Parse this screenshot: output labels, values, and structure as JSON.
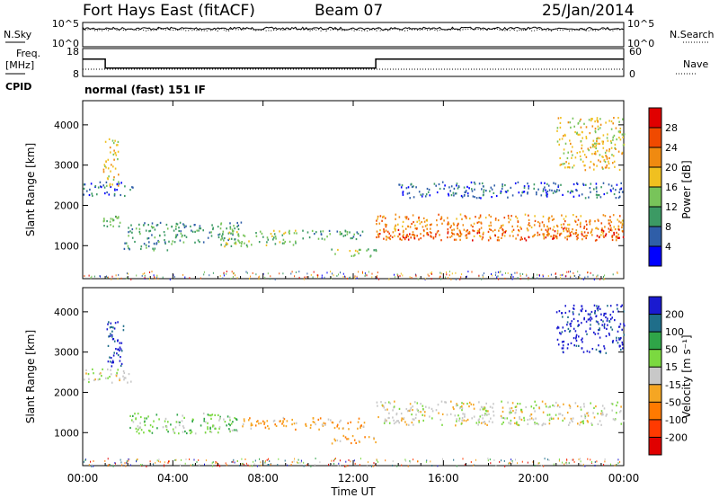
{
  "header": {
    "station": "Fort Hays East (fitACF)",
    "beam": "Beam 07",
    "date": "25/Jan/2014"
  },
  "side_labels": {
    "nsky": "N.Sky",
    "nsearch": "N.Search",
    "freq_line1": "Freq.",
    "freq_line2": "[MHz]",
    "nave": "Nave",
    "cpid": "CPID",
    "cpid_value": "normal (fast) 151 IF"
  },
  "colors": {
    "power": [
      "#0000ff",
      "#2f5ea8",
      "#3c9a64",
      "#78c45a",
      "#f0c020",
      "#f08a10",
      "#f04a00",
      "#e00000"
    ],
    "velocity": [
      "#1a1ad0",
      "#1f6e8a",
      "#2fa548",
      "#7bd940",
      "#c8c8c8",
      "#f5a623",
      "#ff7a00",
      "#ff3a00",
      "#e00000"
    ],
    "nsky_trace": "#000000",
    "freq_trace": "#000000"
  },
  "chart_data": [
    {
      "type": "line",
      "name_panel": "noise",
      "ylabels_left": [
        "10^5",
        "10^0"
      ],
      "ylabels_right": [
        "10^5",
        "10^0"
      ],
      "series": [
        {
          "name": "N.Sky",
          "style": "solid",
          "level": 0.75
        },
        {
          "name": "N.Search",
          "style": "dotted",
          "level": 0.7
        }
      ]
    },
    {
      "type": "line",
      "name_panel": "frequency",
      "yticks_left": [
        18,
        8
      ],
      "yticks_right": [
        60,
        0
      ],
      "series": [
        {
          "name": "Freq.",
          "style": "solid",
          "x": [
            0,
            1.0,
            1.0,
            13.0,
            13.0,
            24
          ],
          "y": [
            14.5,
            14.5,
            10.5,
            10.5,
            14.5,
            14.5
          ]
        },
        {
          "name": "Nave",
          "style": "dotted",
          "x": [
            0,
            24
          ],
          "y": [
            10,
            10
          ]
        }
      ]
    },
    {
      "type": "heatmap",
      "name_panel": "power",
      "ylabel": "Slant Range [km]",
      "yticks": [
        1000,
        2000,
        3000,
        4000
      ],
      "ylim": [
        180,
        4600
      ],
      "xlim": [
        0,
        24
      ],
      "colorbar": {
        "label": "Power [dB]",
        "ticks": [
          "4",
          "8",
          "12",
          "16",
          "20",
          "24",
          "28"
        ]
      },
      "regions": [
        {
          "x": [
            0.0,
            2.2
          ],
          "y": [
            2250,
            2600
          ],
          "level": 1
        },
        {
          "x": [
            0.9,
            1.6
          ],
          "y": [
            2500,
            3700
          ],
          "level": 4
        },
        {
          "x": [
            0.9,
            1.7
          ],
          "y": [
            1500,
            1750
          ],
          "level": 3
        },
        {
          "x": [
            1.8,
            4.0
          ],
          "y": [
            900,
            1100
          ],
          "level": 2
        },
        {
          "x": [
            2.0,
            7.0
          ],
          "y": [
            1100,
            1600
          ],
          "level": 2
        },
        {
          "x": [
            6.0,
            9.5
          ],
          "y": [
            1000,
            1400
          ],
          "level": 3
        },
        {
          "x": [
            9.5,
            12.5
          ],
          "y": [
            1150,
            1400
          ],
          "level": 2
        },
        {
          "x": [
            11.0,
            13.0
          ],
          "y": [
            750,
            950
          ],
          "level": 3
        },
        {
          "x": [
            13.0,
            24.0
          ],
          "y": [
            1200,
            1800
          ],
          "level": 5
        },
        {
          "x": [
            13.0,
            24.0
          ],
          "y": [
            1150,
            1450
          ],
          "level": 6
        },
        {
          "x": [
            14.0,
            24.0
          ],
          "y": [
            2200,
            2600
          ],
          "level": 1
        },
        {
          "x": [
            21.0,
            24.0
          ],
          "y": [
            2900,
            4200
          ],
          "level": 4
        }
      ]
    },
    {
      "type": "heatmap",
      "name_panel": "velocity",
      "ylabel": "Slant Range [km]",
      "xlabel": "Time UT",
      "yticks": [
        1000,
        2000,
        3000,
        4000
      ],
      "ylim": [
        180,
        4600
      ],
      "xlim": [
        0,
        24
      ],
      "xticks": [
        "00:00",
        "04:00",
        "08:00",
        "12:00",
        "16:00",
        "20:00",
        "00:00"
      ],
      "colorbar": {
        "label": "Velocity [m s⁻¹]",
        "ticks": [
          "200",
          "100",
          "50",
          "15",
          "-15",
          "-50",
          "-100",
          "-200"
        ]
      },
      "regions": [
        {
          "x": [
            1.0,
            1.8
          ],
          "y": [
            2600,
            3800
          ],
          "level": 0
        },
        {
          "x": [
            0.0,
            2.2
          ],
          "y": [
            2250,
            2600
          ],
          "level": 4
        },
        {
          "x": [
            2.0,
            7.0
          ],
          "y": [
            1000,
            1500
          ],
          "level": 3
        },
        {
          "x": [
            7.0,
            12.5
          ],
          "y": [
            1100,
            1400
          ],
          "level": 5
        },
        {
          "x": [
            11.0,
            13.0
          ],
          "y": [
            750,
            950
          ],
          "level": 5
        },
        {
          "x": [
            13.0,
            24.0
          ],
          "y": [
            1200,
            1800
          ],
          "level": 4
        },
        {
          "x": [
            21.0,
            24.0
          ],
          "y": [
            3000,
            4200
          ],
          "level": 0
        }
      ]
    }
  ]
}
